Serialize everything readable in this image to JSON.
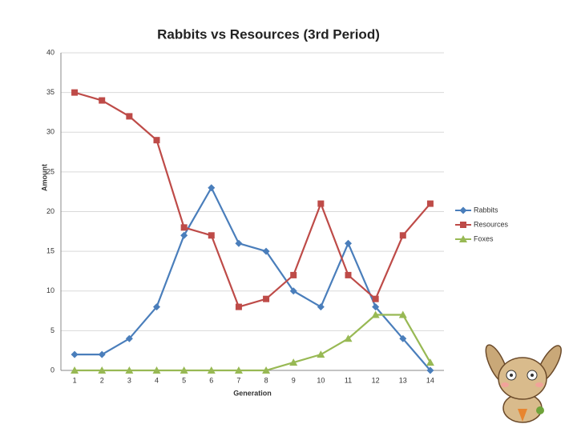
{
  "chart_data": {
    "type": "line",
    "title": "Rabbits vs Resources (3rd Period)",
    "x_label": "Generation",
    "y_label": "Amount",
    "categories": [
      "1",
      "2",
      "3",
      "4",
      "5",
      "6",
      "7",
      "8",
      "9",
      "10",
      "11",
      "12",
      "13",
      "14"
    ],
    "series": [
      {
        "name": "Rabbits",
        "color": "#4a7ebb",
        "marker": "diamond",
        "values": [
          2,
          2,
          4,
          8,
          17,
          23,
          16,
          15,
          10,
          8,
          16,
          8,
          4,
          0
        ]
      },
      {
        "name": "Resources",
        "color": "#be4b48",
        "marker": "square",
        "values": [
          35,
          34,
          32,
          29,
          18,
          17,
          8,
          9,
          12,
          21,
          12,
          9,
          17,
          21
        ]
      },
      {
        "name": "Foxes",
        "color": "#98b954",
        "marker": "triangle",
        "values": [
          0,
          0,
          0,
          0,
          0,
          0,
          0,
          0,
          1,
          2,
          4,
          7,
          7,
          1
        ]
      }
    ],
    "ylim": [
      0,
      40
    ],
    "yticks": [
      0,
      5,
      10,
      15,
      20,
      25,
      30,
      35,
      40
    ],
    "grid": true,
    "legend": "right"
  }
}
